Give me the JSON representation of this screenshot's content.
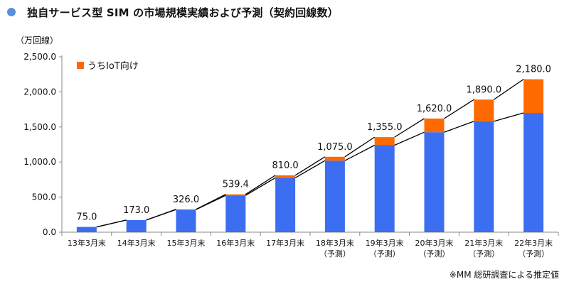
{
  "title": "独自サービス型 SIM の市場規模実績および予測（契約回線数）",
  "unit_label": "（万回線）",
  "legend": {
    "iot_label": "うちIoT向け"
  },
  "source_note": "※MM 総研調査による推定値",
  "colors": {
    "base": "#3b6ef0",
    "iot": "#ff6a00",
    "axis": "#888888",
    "line": "#000000",
    "title_dot": "#5b8fd8"
  },
  "chart_data": {
    "type": "bar",
    "stacked": true,
    "title": "独自サービス型 SIM の市場規模実績および予測（契約回線数）",
    "ylabel": "（万回線）",
    "ylim": [
      0,
      2500
    ],
    "yticks": [
      "0.0",
      "500.0",
      "1,000.0",
      "1,500.0",
      "2,000.0",
      "2,500.0"
    ],
    "ytick_values": [
      0,
      500,
      1000,
      1500,
      2000,
      2500
    ],
    "grid": false,
    "legend_position": "top-left",
    "categories": [
      {
        "label": "13年3月末",
        "sub": ""
      },
      {
        "label": "14年3月末",
        "sub": ""
      },
      {
        "label": "15年3月末",
        "sub": ""
      },
      {
        "label": "16年3月末",
        "sub": ""
      },
      {
        "label": "17年3月末",
        "sub": ""
      },
      {
        "label": "18年3月末",
        "sub": "（予測）"
      },
      {
        "label": "19年3月末",
        "sub": "（予測）"
      },
      {
        "label": "20年3月末",
        "sub": "（予測）"
      },
      {
        "label": "21年3月末",
        "sub": "（予測）"
      },
      {
        "label": "22年3月末",
        "sub": "（予測）"
      }
    ],
    "totals": [
      75.0,
      173.0,
      326.0,
      539.4,
      810.0,
      1075.0,
      1355.0,
      1620.0,
      1890.0,
      2180.0
    ],
    "total_labels": [
      "75.0",
      "173.0",
      "326.0",
      "539.4",
      "810.0",
      "1,075.0",
      "1,355.0",
      "1,620.0",
      "1,890.0",
      "2,180.0"
    ],
    "series": [
      {
        "key": "base",
        "values": [
          75,
          173,
          322,
          525,
          775,
          1020,
          1240,
          1425,
          1580,
          1700
        ]
      },
      {
        "name": "うちIoT向け",
        "key": "iot",
        "values": [
          0,
          0,
          4,
          14.4,
          35,
          55,
          115,
          195,
          310,
          480
        ]
      }
    ]
  }
}
